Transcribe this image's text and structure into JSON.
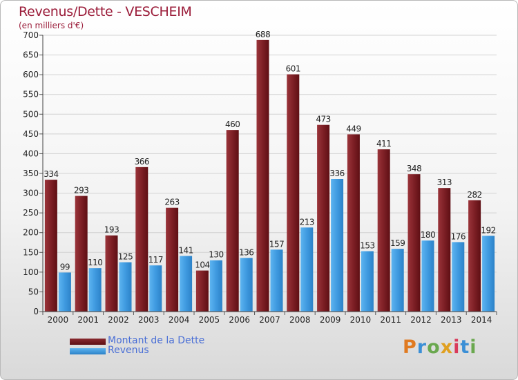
{
  "title": "Revenus/Dette - VESCHEIM",
  "subtitle": "(en milliers d'€)",
  "logo": "Proxiti",
  "colors": {
    "debt": "#7a1a1f",
    "debt_light": "#973238",
    "revenue": "#3f9ae0",
    "revenue_light": "#5ab1ef",
    "title": "#9b1d3a",
    "legend_text": "#4a6fd6"
  },
  "legend": [
    {
      "label": "Montant de la Dette",
      "color": "#7a1a1f"
    },
    {
      "label": "Revenus",
      "color": "#3f9ae0"
    }
  ],
  "chart_data": {
    "type": "bar",
    "title": "Revenus/Dette - VESCHEIM",
    "ylabel": "(en milliers d'€)",
    "xlabel": "",
    "ylim": [
      0,
      700
    ],
    "yticks": [
      0,
      50,
      100,
      150,
      200,
      250,
      300,
      350,
      400,
      450,
      500,
      550,
      600,
      650,
      700
    ],
    "grid": true,
    "legend_position": "bottom-left",
    "categories": [
      "2000",
      "2001",
      "2002",
      "2003",
      "2004",
      "2005",
      "2006",
      "2007",
      "2008",
      "2009",
      "2010",
      "2011",
      "2012",
      "2013",
      "2014"
    ],
    "series": [
      {
        "name": "Montant de la Dette",
        "values": [
          334,
          293,
          193,
          366,
          263,
          104,
          460,
          688,
          601,
          473,
          449,
          411,
          348,
          313,
          282
        ]
      },
      {
        "name": "Revenus",
        "values": [
          99,
          110,
          125,
          117,
          141,
          130,
          136,
          157,
          213,
          336,
          153,
          159,
          180,
          176,
          192
        ]
      }
    ]
  }
}
